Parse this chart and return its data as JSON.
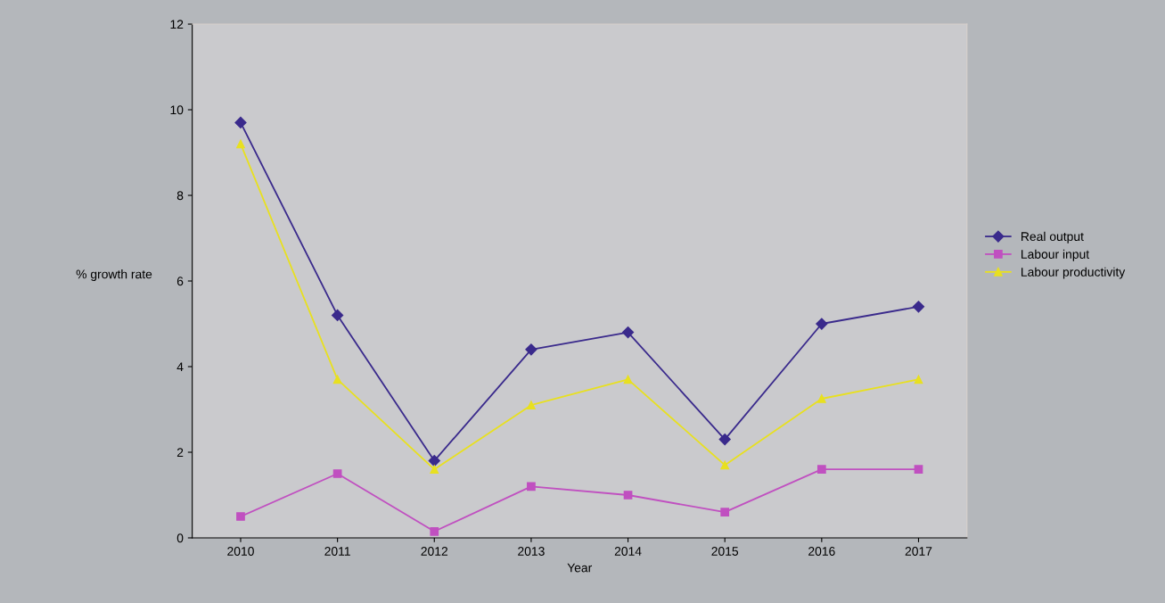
{
  "chart_data": {
    "type": "line",
    "xlabel": "Year",
    "ylabel": "% growth rate",
    "categories": [
      "2010",
      "2011",
      "2012",
      "2013",
      "2014",
      "2015",
      "2016",
      "2017"
    ],
    "series": [
      {
        "name": "Real output",
        "color": "#3a2a8c",
        "marker": "diamond",
        "values": [
          9.7,
          5.2,
          1.8,
          4.4,
          4.8,
          2.3,
          5.0,
          5.4
        ]
      },
      {
        "name": "Labour input",
        "color": "#c050c0",
        "marker": "square",
        "values": [
          0.5,
          1.5,
          0.15,
          1.2,
          1.0,
          0.6,
          1.6,
          1.6
        ]
      },
      {
        "name": "Labour productivity",
        "color": "#e8e020",
        "marker": "triangle",
        "values": [
          9.2,
          3.7,
          1.6,
          3.1,
          3.7,
          1.7,
          3.25,
          3.7
        ]
      }
    ],
    "ylim": [
      0,
      12
    ],
    "yticks": [
      0,
      2,
      4,
      6,
      8,
      10,
      12
    ],
    "grid": false,
    "legend": "right",
    "line_style": "solid"
  }
}
